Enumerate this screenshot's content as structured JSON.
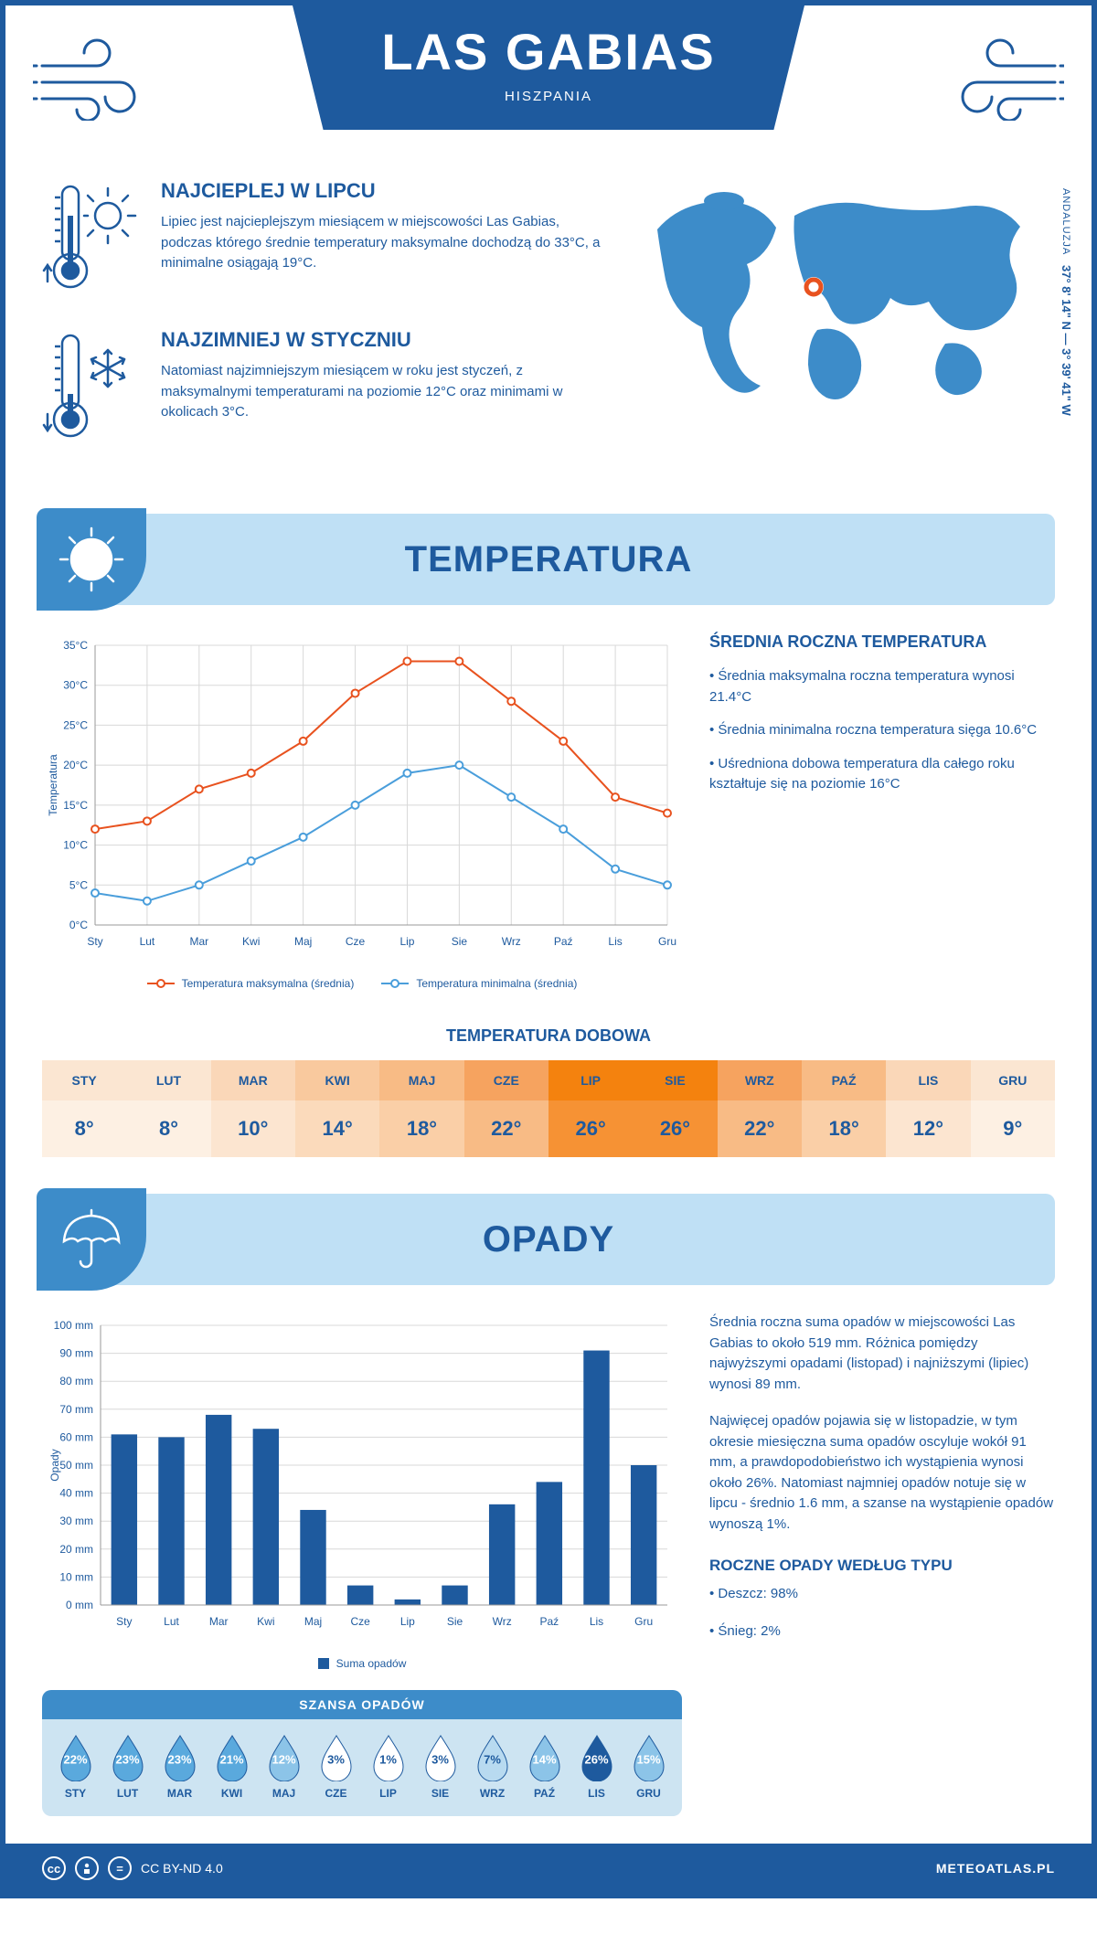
{
  "header": {
    "title": "LAS GABIAS",
    "subtitle": "HISZPANIA"
  },
  "coords": {
    "region": "ANDALUZJA",
    "lat": "37° 8' 14\" N",
    "lon": "3° 39' 41\" W"
  },
  "intro": {
    "hot": {
      "title": "NAJCIEPLEJ W LIPCU",
      "text": "Lipiec jest najcieplejszym miesiącem w miejscowości Las Gabias, podczas którego średnie temperatury maksymalne dochodzą do 33°C, a minimalne osiągają 19°C."
    },
    "cold": {
      "title": "NAJZIMNIEJ W STYCZNIU",
      "text": "Natomiast najzimniejszym miesiącem w roku jest styczeń, z maksymalnymi temperaturami na poziomie 12°C oraz minimami w okolicach 3°C."
    }
  },
  "sections": {
    "temperatura": "TEMPERATURA",
    "opady": "OPADY"
  },
  "temp_chart": {
    "type": "line",
    "months": [
      "Sty",
      "Lut",
      "Mar",
      "Kwi",
      "Maj",
      "Cze",
      "Lip",
      "Sie",
      "Wrz",
      "Paź",
      "Lis",
      "Gru"
    ],
    "ylabel": "Temperatura",
    "ylim": [
      0,
      35
    ],
    "ytick_step": 5,
    "ytick_labels": [
      "0°C",
      "5°C",
      "10°C",
      "15°C",
      "20°C",
      "25°C",
      "30°C",
      "35°C"
    ],
    "series": [
      {
        "name": "Temperatura maksymalna (średnia)",
        "color": "#e8521f",
        "values": [
          12,
          13,
          17,
          19,
          23,
          29,
          33,
          33,
          28,
          23,
          16,
          14
        ]
      },
      {
        "name": "Temperatura minimalna (średnia)",
        "color": "#4a9edb",
        "values": [
          4,
          3,
          5,
          8,
          11,
          15,
          19,
          20,
          16,
          12,
          7,
          5
        ]
      }
    ],
    "grid_color": "#d8d8d8",
    "line_width": 2,
    "marker": "circle",
    "label_fontsize": 12
  },
  "temp_side": {
    "title": "ŚREDNIA ROCZNA TEMPERATURA",
    "bullets": [
      "• Średnia maksymalna roczna temperatura wynosi 21.4°C",
      "• Średnia minimalna roczna temperatura sięga 10.6°C",
      "• Uśredniona dobowa temperatura dla całego roku kształtuje się na poziomie 16°C"
    ]
  },
  "dobowa": {
    "title": "TEMPERATURA DOBOWA",
    "months": [
      "STY",
      "LUT",
      "MAR",
      "KWI",
      "MAJ",
      "CZE",
      "LIP",
      "SIE",
      "WRZ",
      "PAŹ",
      "LIS",
      "GRU"
    ],
    "values": [
      "8°",
      "8°",
      "10°",
      "14°",
      "18°",
      "22°",
      "26°",
      "26°",
      "22°",
      "18°",
      "12°",
      "9°"
    ],
    "head_colors": [
      "#fbe6d2",
      "#fbe6d2",
      "#fad7b8",
      "#f9c99e",
      "#f8bb85",
      "#f6a35f",
      "#f4820e",
      "#f4820e",
      "#f6a35f",
      "#f8bb85",
      "#fad7b8",
      "#fbe6d2"
    ],
    "val_colors": [
      "#fdf0e3",
      "#fdf0e3",
      "#fce5d0",
      "#fbdabb",
      "#facfa7",
      "#f8bb85",
      "#f69234",
      "#f69234",
      "#f8bb85",
      "#facfa7",
      "#fce5d0",
      "#fdf0e3"
    ],
    "text_color": "#1e5a9e"
  },
  "opady_chart": {
    "type": "bar",
    "months": [
      "Sty",
      "Lut",
      "Mar",
      "Kwi",
      "Maj",
      "Cze",
      "Lip",
      "Sie",
      "Wrz",
      "Paź",
      "Lis",
      "Gru"
    ],
    "ylabel": "Opady",
    "ylim": [
      0,
      100
    ],
    "ytick_step": 10,
    "ytick_labels": [
      "0 mm",
      "10 mm",
      "20 mm",
      "30 mm",
      "40 mm",
      "50 mm",
      "60 mm",
      "70 mm",
      "80 mm",
      "90 mm",
      "100 mm"
    ],
    "values": [
      61,
      60,
      68,
      63,
      34,
      7,
      2,
      7,
      36,
      44,
      91,
      50
    ],
    "bar_color": "#1e5a9e",
    "grid_color": "#d8d8d8",
    "bar_width": 0.55,
    "legend_label": "Suma opadów",
    "label_fontsize": 12
  },
  "opady_text": {
    "p1": "Średnia roczna suma opadów w miejscowości Las Gabias to około 519 mm. Różnica pomiędzy najwyższymi opadami (listopad) i najniższymi (lipiec) wynosi 89 mm.",
    "p2": "Najwięcej opadów pojawia się w listopadzie, w tym okresie miesięczna suma opadów oscyluje wokół 91 mm, a prawdopodobieństwo ich wystąpienia wynosi około 26%. Natomiast najmniej opadów notuje się w lipcu - średnio 1.6 mm, a szanse na wystąpienie opadów wynoszą 1%.",
    "type_title": "ROCZNE OPADY WEDŁUG TYPU",
    "type_bullets": [
      "• Deszcz: 98%",
      "• Śnieg: 2%"
    ]
  },
  "szansa": {
    "title": "SZANSA OPADÓW",
    "months": [
      "STY",
      "LUT",
      "MAR",
      "KWI",
      "MAJ",
      "CZE",
      "LIP",
      "SIE",
      "WRZ",
      "PAŹ",
      "LIS",
      "GRU"
    ],
    "values": [
      "22%",
      "23%",
      "23%",
      "21%",
      "12%",
      "3%",
      "1%",
      "3%",
      "7%",
      "14%",
      "26%",
      "15%"
    ],
    "fill_colors": [
      "#5aa9dd",
      "#5aa9dd",
      "#5aa9dd",
      "#5aa9dd",
      "#8cc4e8",
      "#ffffff",
      "#ffffff",
      "#ffffff",
      "#b8daf0",
      "#8cc4e8",
      "#1e5a9e",
      "#8cc4e8"
    ],
    "text_colors": [
      "#ffffff",
      "#ffffff",
      "#ffffff",
      "#ffffff",
      "#ffffff",
      "#1e5a9e",
      "#1e5a9e",
      "#1e5a9e",
      "#1e5a9e",
      "#ffffff",
      "#ffffff",
      "#ffffff"
    ]
  },
  "footer": {
    "license": "CC BY-ND 4.0",
    "site": "METEOATLAS.PL"
  },
  "colors": {
    "primary": "#1e5a9e",
    "accent": "#3d8cc9",
    "light_blue": "#bfe0f5",
    "orange": "#e8521f"
  }
}
